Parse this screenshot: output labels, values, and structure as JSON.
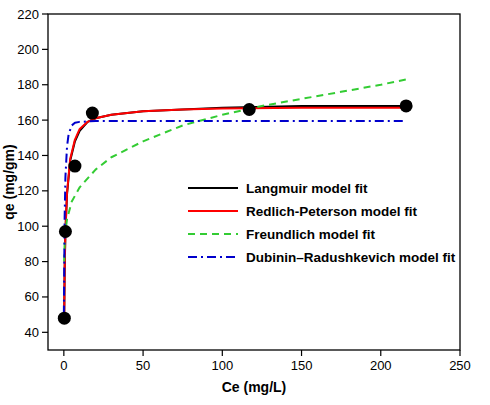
{
  "chart_data": {
    "type": "scatter",
    "xlabel": "Ce (mg/L)",
    "ylabel": "qe (mg/gm)",
    "xlim": [
      -10,
      250
    ],
    "xticks": [
      0,
      50,
      100,
      150,
      200,
      250
    ],
    "ylim": [
      30,
      220
    ],
    "yticks": [
      40,
      60,
      80,
      100,
      120,
      140,
      160,
      180,
      200,
      220
    ],
    "legend": "center",
    "series": [
      {
        "type": "scatter",
        "marker": "circle",
        "color": "#000000",
        "x": [
          0.3,
          1,
          7,
          18,
          117,
          216
        ],
        "values": [
          48,
          97,
          134,
          164,
          166,
          168
        ]
      },
      {
        "name": "Langmuir model fit",
        "type": "line",
        "line_style": "solid",
        "color": "#000000",
        "x": [
          0.2,
          0.5,
          1,
          2,
          4,
          7,
          10,
          15,
          20,
          30,
          50,
          75,
          100,
          150,
          200,
          216
        ],
        "values": [
          45,
          75,
          97,
          118,
          137,
          148,
          154,
          159,
          161,
          163,
          165,
          166,
          167,
          168,
          168,
          168
        ]
      },
      {
        "name": "Redlich-Peterson  model fit",
        "type": "line",
        "line_style": "solid",
        "color": "#ff0000",
        "x": [
          0.2,
          0.5,
          1,
          2,
          4,
          7,
          10,
          15,
          20,
          30,
          50,
          75,
          100,
          150,
          200,
          216
        ],
        "values": [
          45,
          76,
          98,
          119,
          138,
          149,
          155,
          159,
          161,
          163,
          165,
          166,
          166.5,
          167,
          167,
          167
        ]
      },
      {
        "name": "Freundlich  model fit",
        "type": "line",
        "line_style": "dashed",
        "color": "#33cc33",
        "x": [
          0.2,
          0.5,
          1,
          2,
          5,
          10,
          20,
          30,
          50,
          75,
          100,
          125,
          150,
          175,
          200,
          216
        ],
        "values": [
          80,
          90,
          97,
          104,
          114,
          122,
          132,
          139,
          148,
          157,
          163,
          168,
          172,
          176,
          180,
          183
        ]
      },
      {
        "name": "Dubinin–Radushkevich model fit",
        "type": "line",
        "line_style": "dashdot",
        "color": "#0000cc",
        "x": [
          0,
          0.5,
          1,
          2,
          3,
          5,
          7,
          10,
          20,
          50,
          100,
          150,
          200,
          216
        ],
        "values": [
          50,
          105,
          128,
          145,
          152,
          157,
          158.5,
          159,
          159.5,
          159.5,
          159.5,
          159.5,
          159.5,
          159.5
        ]
      }
    ]
  }
}
